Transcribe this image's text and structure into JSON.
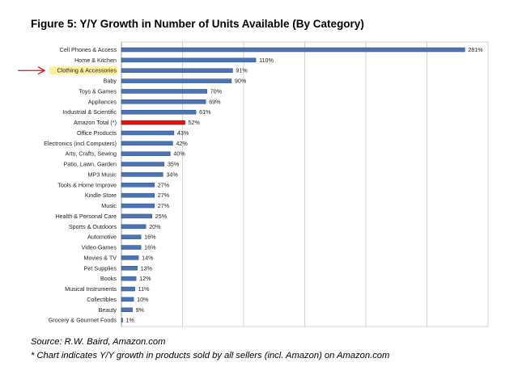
{
  "figure": {
    "title": "Figure 5: Y/Y Growth in Number of Units Available (By Category)",
    "source": "Source: R.W. Baird, Amazon.com",
    "footnote": "* Chart indicates Y/Y growth in products sold by all sellers (incl. Amazon) on Amazon.com"
  },
  "colors": {
    "bar": "#4a74b3",
    "bar_edge": "#2b4f86",
    "highlight_bar": "#e01010",
    "highlight_label_bg": "#fff19a",
    "arrow": "#e01010",
    "grid": "#c8c8c8"
  },
  "chart_data": {
    "type": "bar",
    "orientation": "horizontal",
    "title": "Figure 5: Y/Y Growth in Number of Units Available (By Category)",
    "xlabel": "",
    "ylabel": "",
    "xlim": [
      0,
      300
    ],
    "grid": true,
    "value_suffix": "%",
    "categories": [
      "Cell Phones & Access",
      "Home & Kitchen",
      "Clothing & Accessories",
      "Baby",
      "Toys & Games",
      "Appliances",
      "Industrial & Scientific",
      "Amazon Total (*)",
      "Office Products",
      "Electronics (incl Computers)",
      "Arts, Crafts, Sewing",
      "Patio, Lawn, Garden",
      "MP3 Music",
      "Tools & Home Improve",
      "Kindle Store",
      "Music",
      "Health & Personal Care",
      "Sports & Outdoors",
      "Automotive",
      "Video Games",
      "Movies & TV",
      "Pet Supplies",
      "Books",
      "Musical Instruments",
      "Collectibles",
      "Beauty",
      "Grocery & Gourmet Foods"
    ],
    "values": [
      281,
      110,
      91,
      90,
      70,
      69,
      61,
      52,
      43,
      42,
      40,
      35,
      34,
      27,
      27,
      27,
      25,
      20,
      16,
      16,
      14,
      13,
      12,
      11,
      10,
      9,
      1
    ],
    "highlighted_bar": "Amazon Total (*)",
    "highlighted_label": "Clothing & Accessories"
  }
}
